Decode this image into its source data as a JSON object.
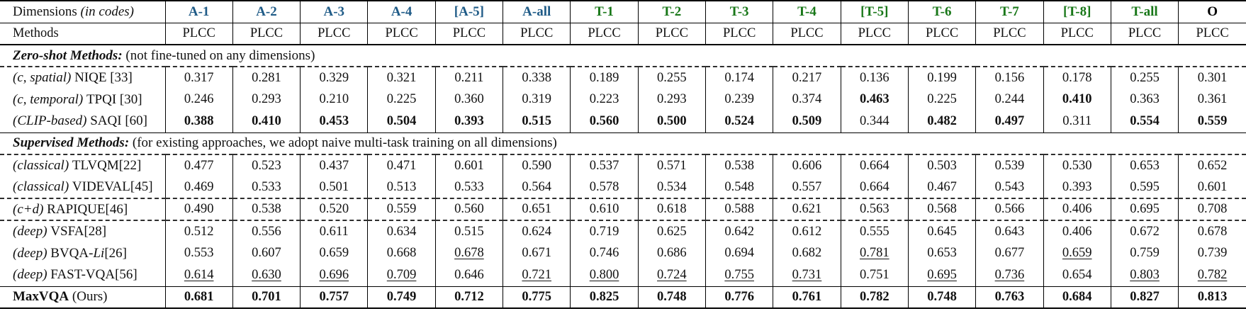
{
  "colors": {
    "a": "#1f5b87",
    "t": "#187718",
    "o": "#000000"
  },
  "header": {
    "dimensions_label": "Dimensions ",
    "dimensions_note": "(in codes)",
    "methods_label": "Methods",
    "metric_label": "PLCC",
    "columns": [
      {
        "label": "A-1",
        "group": "a"
      },
      {
        "label": "A-2",
        "group": "a"
      },
      {
        "label": "A-3",
        "group": "a"
      },
      {
        "label": "A-4",
        "group": "a"
      },
      {
        "label": "[A-5]",
        "group": "a"
      },
      {
        "label": "A-all",
        "group": "a"
      },
      {
        "label": "T-1",
        "group": "t"
      },
      {
        "label": "T-2",
        "group": "t"
      },
      {
        "label": "T-3",
        "group": "t"
      },
      {
        "label": "T-4",
        "group": "t"
      },
      {
        "label": "[T-5]",
        "group": "t"
      },
      {
        "label": "T-6",
        "group": "t"
      },
      {
        "label": "T-7",
        "group": "t"
      },
      {
        "label": "[T-8]",
        "group": "t"
      },
      {
        "label": "T-all",
        "group": "t"
      },
      {
        "label": "O",
        "group": "o"
      }
    ]
  },
  "rows": [
    {
      "type": "section",
      "border_top": null,
      "title": "Zero-shot Methods:",
      "note": " (not fine-tuned on any dimensions)"
    },
    {
      "type": "data",
      "border_top": "dashed",
      "label_parts": [
        {
          "text": "(c, spatial) ",
          "style": "italic"
        },
        {
          "text": "NIQE [33]",
          "style": "normal"
        }
      ],
      "values": [
        "0.317",
        "0.281",
        "0.329",
        "0.321",
        "0.211",
        "0.338",
        "0.189",
        "0.255",
        "0.174",
        "0.217",
        "0.136",
        "0.199",
        "0.156",
        "0.178",
        "0.255",
        "0.301"
      ],
      "marks": [
        "",
        "",
        "",
        "",
        "",
        "",
        "",
        "",
        "",
        "",
        "",
        "",
        "",
        "",
        "",
        ""
      ]
    },
    {
      "type": "data",
      "border_top": null,
      "label_parts": [
        {
          "text": "(c, temporal) ",
          "style": "italic"
        },
        {
          "text": "TPQI [30]",
          "style": "normal"
        }
      ],
      "values": [
        "0.246",
        "0.293",
        "0.210",
        "0.225",
        "0.360",
        "0.319",
        "0.223",
        "0.293",
        "0.239",
        "0.374",
        "0.463",
        "0.225",
        "0.244",
        "0.410",
        "0.363",
        "0.361"
      ],
      "marks": [
        "",
        "",
        "",
        "",
        "",
        "",
        "",
        "",
        "",
        "",
        "b",
        "",
        "",
        "b",
        "",
        ""
      ]
    },
    {
      "type": "data",
      "border_top": null,
      "label_parts": [
        {
          "text": "(CLIP-based) ",
          "style": "italic"
        },
        {
          "text": "SAQI [60]",
          "style": "normal"
        }
      ],
      "values": [
        "0.388",
        "0.410",
        "0.453",
        "0.504",
        "0.393",
        "0.515",
        "0.560",
        "0.500",
        "0.524",
        "0.509",
        "0.344",
        "0.482",
        "0.497",
        "0.311",
        "0.554",
        "0.559"
      ],
      "marks": [
        "b",
        "b",
        "b",
        "b",
        "b",
        "b",
        "b",
        "b",
        "b",
        "b",
        "",
        "b",
        "b",
        "",
        "b",
        "b"
      ]
    },
    {
      "type": "section",
      "border_top": "solid",
      "title": "Supervised Methods:",
      "note": " (for existing approaches, we adopt naive multi-task training on all dimensions)"
    },
    {
      "type": "data",
      "border_top": "dashed",
      "label_parts": [
        {
          "text": "(classical) ",
          "style": "italic"
        },
        {
          "text": "TLVQM[22]",
          "style": "normal"
        }
      ],
      "values": [
        "0.477",
        "0.523",
        "0.437",
        "0.471",
        "0.601",
        "0.590",
        "0.537",
        "0.571",
        "0.538",
        "0.606",
        "0.664",
        "0.503",
        "0.539",
        "0.530",
        "0.653",
        "0.652"
      ],
      "marks": [
        "",
        "",
        "",
        "",
        "",
        "",
        "",
        "",
        "",
        "",
        "",
        "",
        "",
        "",
        "",
        ""
      ]
    },
    {
      "type": "data",
      "border_top": null,
      "label_parts": [
        {
          "text": "(classical) ",
          "style": "italic"
        },
        {
          "text": "VIDEVAL[45]",
          "style": "normal"
        }
      ],
      "values": [
        "0.469",
        "0.533",
        "0.501",
        "0.513",
        "0.533",
        "0.564",
        "0.578",
        "0.534",
        "0.548",
        "0.557",
        "0.664",
        "0.467",
        "0.543",
        "0.393",
        "0.595",
        "0.601"
      ],
      "marks": [
        "",
        "",
        "",
        "",
        "",
        "",
        "",
        "",
        "",
        "",
        "",
        "",
        "",
        "",
        "",
        ""
      ]
    },
    {
      "type": "data",
      "border_top": "dashed",
      "label_parts": [
        {
          "text": "(c+d) ",
          "style": "italic"
        },
        {
          "text": "RAPIQUE[46]",
          "style": "normal"
        }
      ],
      "values": [
        "0.490",
        "0.538",
        "0.520",
        "0.559",
        "0.560",
        "0.651",
        "0.610",
        "0.618",
        "0.588",
        "0.621",
        "0.563",
        "0.568",
        "0.566",
        "0.406",
        "0.695",
        "0.708"
      ],
      "marks": [
        "",
        "",
        "",
        "",
        "",
        "",
        "",
        "",
        "",
        "",
        "",
        "",
        "",
        "",
        "",
        ""
      ]
    },
    {
      "type": "data",
      "border_top": "dashed",
      "label_parts": [
        {
          "text": "(deep) ",
          "style": "italic"
        },
        {
          "text": "VSFA[28]",
          "style": "normal"
        }
      ],
      "values": [
        "0.512",
        "0.556",
        "0.611",
        "0.634",
        "0.515",
        "0.624",
        "0.719",
        "0.625",
        "0.642",
        "0.612",
        "0.555",
        "0.645",
        "0.643",
        "0.406",
        "0.672",
        "0.678"
      ],
      "marks": [
        "",
        "",
        "",
        "",
        "",
        "",
        "",
        "",
        "",
        "",
        "",
        "",
        "",
        "",
        "",
        ""
      ]
    },
    {
      "type": "data",
      "border_top": null,
      "label_parts": [
        {
          "text": "(deep) ",
          "style": "italic"
        },
        {
          "text": "BVQA-",
          "style": "normal"
        },
        {
          "text": "Li",
          "style": "italic"
        },
        {
          "text": "[26]",
          "style": "normal"
        }
      ],
      "values": [
        "0.553",
        "0.607",
        "0.659",
        "0.668",
        "0.678",
        "0.671",
        "0.746",
        "0.686",
        "0.694",
        "0.682",
        "0.781",
        "0.653",
        "0.677",
        "0.659",
        "0.759",
        "0.739"
      ],
      "marks": [
        "",
        "",
        "",
        "",
        "u",
        "",
        "",
        "",
        "",
        "",
        "u",
        "",
        "",
        "u",
        "",
        ""
      ]
    },
    {
      "type": "data",
      "border_top": null,
      "label_parts": [
        {
          "text": "(deep) ",
          "style": "italic"
        },
        {
          "text": "FAST-VQA[56]",
          "style": "normal"
        }
      ],
      "values": [
        "0.614",
        "0.630",
        "0.696",
        "0.709",
        "0.646",
        "0.721",
        "0.800",
        "0.724",
        "0.755",
        "0.731",
        "0.751",
        "0.695",
        "0.736",
        "0.654",
        "0.803",
        "0.782"
      ],
      "marks": [
        "u",
        "u",
        "u",
        "u",
        "",
        "u",
        "u",
        "u",
        "u",
        "u",
        "",
        "u",
        "u",
        "",
        "u",
        "u"
      ]
    },
    {
      "type": "data",
      "border_top": "solid",
      "label_parts": [
        {
          "text": "MaxVQA",
          "style": "bold"
        },
        {
          "text": " (Ours)",
          "style": "normal"
        }
      ],
      "values": [
        "0.681",
        "0.701",
        "0.757",
        "0.749",
        "0.712",
        "0.775",
        "0.825",
        "0.748",
        "0.776",
        "0.761",
        "0.782",
        "0.748",
        "0.763",
        "0.684",
        "0.827",
        "0.813"
      ],
      "marks": [
        "b",
        "b",
        "b",
        "b",
        "b",
        "b",
        "b",
        "b",
        "b",
        "b",
        "b",
        "b",
        "b",
        "b",
        "b",
        "b"
      ]
    }
  ]
}
